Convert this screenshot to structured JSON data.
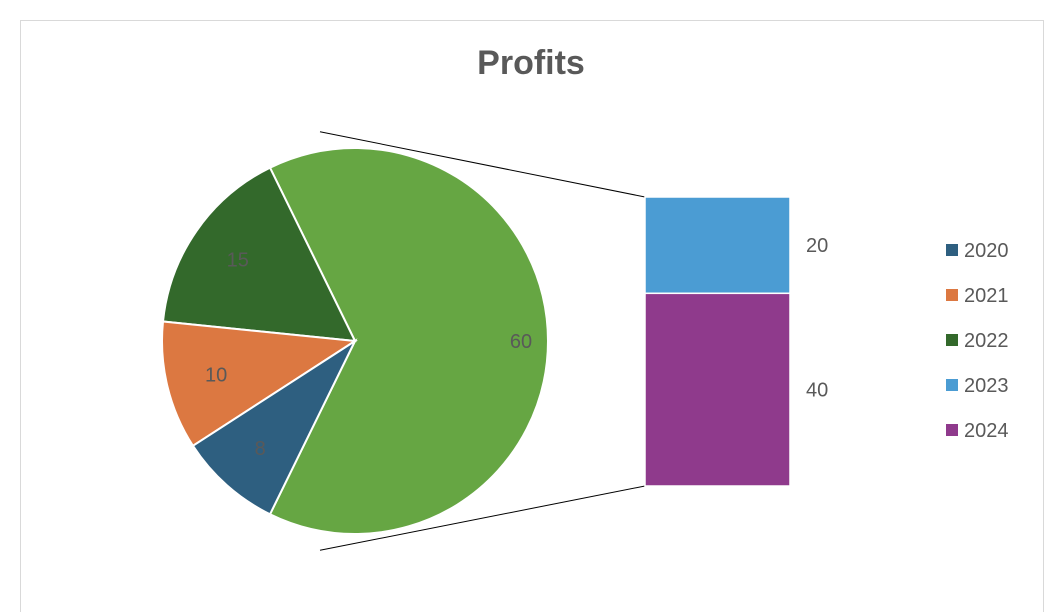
{
  "chart_data": {
    "type": "pie",
    "subtype": "bar-of-pie",
    "title": "Profits",
    "categories": [
      "2020",
      "2021",
      "2022",
      "2023",
      "2024"
    ],
    "values": [
      8,
      10,
      15,
      20,
      40
    ],
    "combined_slice_value": 60,
    "secondary_categories": [
      "2023",
      "2024"
    ],
    "legend_placement": "right",
    "colors": {
      "2020": "#2e5f80",
      "2021": "#dc7841",
      "2022": "#33692b",
      "2023": "#4b9cd3",
      "2024": "#8f3a8c",
      "other": "#66a643"
    },
    "data_labels": {
      "2020": "8",
      "2021": "10",
      "2022": "15",
      "2023": "20",
      "2024": "40",
      "other": "60"
    }
  }
}
